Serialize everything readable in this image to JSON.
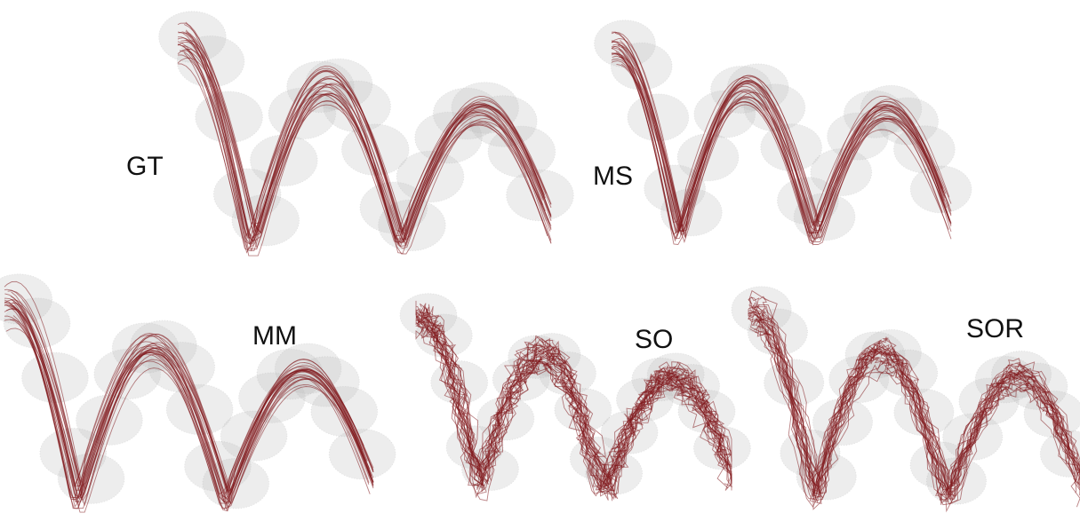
{
  "panels": [
    {
      "label": "GT"
    },
    {
      "label": "MS"
    },
    {
      "label": "MM"
    },
    {
      "label": "SO"
    },
    {
      "label": "SOR"
    }
  ]
}
